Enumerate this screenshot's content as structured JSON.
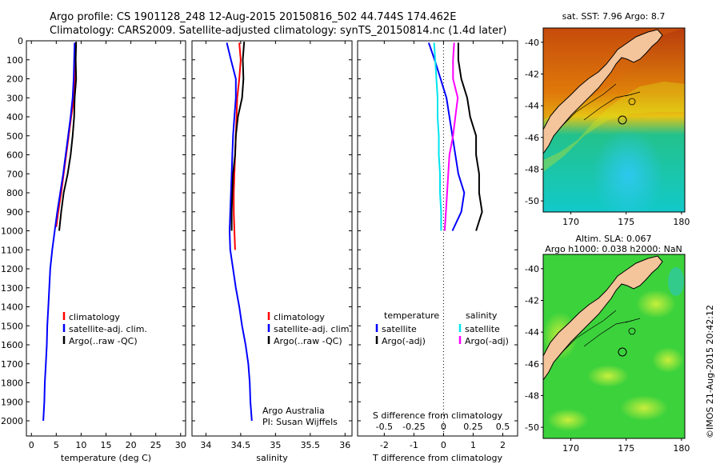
{
  "header": {
    "line1": "Argo profile: CS 1901128_248 12-Aug-2015 20150816_502 44.744S 174.462E",
    "line2": "Climatology: CARS2009. Satellite-adjusted climatology: synTS_20150814.nc (1.4d later)"
  },
  "credit": "Argo Australia",
  "pi": "PI: Susan Wijffels",
  "stamp": "©IMOS 21-Aug-2015 20:42:12",
  "colors": {
    "climatology": "#ff0000",
    "satellite": "#0000ff",
    "argo": "#000000",
    "sal_satellite": "#00e5ee",
    "sal_argo": "#ff00ff"
  },
  "chart_data": [
    {
      "type": "line",
      "xlabel": "temperature (deg C)",
      "ylabel": "",
      "xlim": [
        -1,
        31
      ],
      "ylim": [
        2080,
        0
      ],
      "xticks": [
        0,
        5,
        10,
        15,
        20,
        25,
        30
      ],
      "yticks": [
        0,
        100,
        200,
        300,
        400,
        500,
        600,
        700,
        800,
        900,
        1000,
        1100,
        1200,
        1300,
        1400,
        1500,
        1600,
        1700,
        1800,
        1900,
        2000
      ],
      "legend": [
        "climatology",
        "satellite-adj. clim.",
        "Argo(..raw -QC)"
      ],
      "legend_placement": "lower-center",
      "series": [
        {
          "name": "climatology",
          "color": "#ff0000",
          "points": [
            [
              8.9,
              10
            ],
            [
              8.8,
              100
            ],
            [
              8.7,
              200
            ],
            [
              8.6,
              300
            ],
            [
              8.0,
              400
            ],
            [
              7.5,
              500
            ],
            [
              7.0,
              600
            ],
            [
              6.5,
              700
            ],
            [
              6.0,
              800
            ],
            [
              5.4,
              900
            ],
            [
              5.0,
              980
            ]
          ]
        },
        {
          "name": "satellite-adj. clim.",
          "color": "#0000ff",
          "points": [
            [
              8.7,
              10
            ],
            [
              8.6,
              100
            ],
            [
              8.5,
              200
            ],
            [
              8.3,
              300
            ],
            [
              7.9,
              400
            ],
            [
              7.4,
              500
            ],
            [
              6.9,
              600
            ],
            [
              6.4,
              700
            ],
            [
              5.8,
              800
            ],
            [
              5.2,
              900
            ],
            [
              4.7,
              1000
            ],
            [
              4.2,
              1100
            ],
            [
              3.8,
              1200
            ],
            [
              3.6,
              1300
            ],
            [
              3.4,
              1400
            ],
            [
              3.2,
              1500
            ],
            [
              3.1,
              1600
            ],
            [
              2.9,
              1700
            ],
            [
              2.7,
              1800
            ],
            [
              2.6,
              1900
            ],
            [
              2.4,
              2000
            ]
          ]
        },
        {
          "name": "Argo(..raw -QC)",
          "color": "#000000",
          "points": [
            [
              9.0,
              5
            ],
            [
              8.9,
              100
            ],
            [
              9.0,
              200
            ],
            [
              8.7,
              300
            ],
            [
              8.6,
              400
            ],
            [
              8.3,
              500
            ],
            [
              7.9,
              600
            ],
            [
              7.3,
              700
            ],
            [
              6.5,
              800
            ],
            [
              6.0,
              900
            ],
            [
              5.6,
              1000
            ]
          ]
        }
      ]
    },
    {
      "type": "line",
      "xlabel": "salinity",
      "ylabel": "",
      "xlim": [
        33.8,
        36.1
      ],
      "ylim": [
        2080,
        0
      ],
      "xticks": [
        34,
        34.5,
        35,
        35.5,
        36
      ],
      "legend": [
        "climatology",
        "satellite-adj. clim.",
        "Argo(..raw -QC)"
      ],
      "legend_placement": "lower-center",
      "series": [
        {
          "name": "climatology",
          "color": "#ff0000",
          "points": [
            [
              34.48,
              10
            ],
            [
              34.5,
              100
            ],
            [
              34.48,
              200
            ],
            [
              34.45,
              300
            ],
            [
              34.44,
              400
            ],
            [
              34.43,
              500
            ],
            [
              34.42,
              600
            ],
            [
              34.41,
              700
            ],
            [
              34.4,
              800
            ],
            [
              34.4,
              900
            ],
            [
              34.41,
              1000
            ],
            [
              34.42,
              1100
            ]
          ]
        },
        {
          "name": "satellite-adj. clim.",
          "color": "#0000ff",
          "points": [
            [
              34.3,
              10
            ],
            [
              34.36,
              100
            ],
            [
              34.43,
              200
            ],
            [
              34.43,
              300
            ],
            [
              34.41,
              400
            ],
            [
              34.39,
              500
            ],
            [
              34.38,
              600
            ],
            [
              34.37,
              700
            ],
            [
              34.36,
              800
            ],
            [
              34.35,
              900
            ],
            [
              34.34,
              1000
            ],
            [
              34.35,
              1100
            ],
            [
              34.39,
              1200
            ],
            [
              34.43,
              1300
            ],
            [
              34.48,
              1400
            ],
            [
              34.52,
              1500
            ],
            [
              34.57,
              1600
            ],
            [
              34.61,
              1700
            ],
            [
              34.63,
              1800
            ],
            [
              34.64,
              1900
            ],
            [
              34.66,
              2000
            ]
          ]
        },
        {
          "name": "Argo(..raw -QC)",
          "color": "#000000",
          "points": [
            [
              34.55,
              5
            ],
            [
              34.53,
              100
            ],
            [
              34.54,
              200
            ],
            [
              34.52,
              300
            ],
            [
              34.46,
              400
            ],
            [
              34.43,
              500
            ],
            [
              34.42,
              600
            ],
            [
              34.39,
              700
            ],
            [
              34.38,
              800
            ],
            [
              34.37,
              900
            ],
            [
              34.37,
              1000
            ]
          ]
        }
      ]
    },
    {
      "type": "line",
      "xlabel": "T difference from climatology",
      "xlabel_top": "S difference from climatology",
      "ylabel": "",
      "xlim": [
        -2.9,
        2.5
      ],
      "ylim": [
        2080,
        0
      ],
      "xticks": [
        -2,
        -1,
        0,
        1,
        2
      ],
      "xticks_top": [
        -0.5,
        -0.25,
        0,
        0.25,
        0.5
      ],
      "legend_groups": [
        {
          "title": "temperature",
          "items": [
            "satellite",
            "Argo(-adj)"
          ]
        },
        {
          "title": "salinity",
          "items": [
            "satellite",
            "Argo(-adj)"
          ]
        }
      ],
      "legend_placement": "lower-center",
      "series": [
        {
          "name": "temperature satellite",
          "color": "#0000ff",
          "points": [
            [
              -0.5,
              10
            ],
            [
              -0.3,
              100
            ],
            [
              -0.1,
              200
            ],
            [
              0.1,
              300
            ],
            [
              0.2,
              400
            ],
            [
              0.3,
              500
            ],
            [
              0.4,
              600
            ],
            [
              0.5,
              700
            ],
            [
              0.7,
              800
            ],
            [
              0.6,
              900
            ],
            [
              0.3,
              1000
            ]
          ]
        },
        {
          "name": "temperature Argo(-adj)",
          "color": "#000000",
          "points": [
            [
              0.5,
              10
            ],
            [
              0.5,
              100
            ],
            [
              0.6,
              200
            ],
            [
              0.8,
              300
            ],
            [
              0.9,
              400
            ],
            [
              1.1,
              500
            ],
            [
              1.1,
              600
            ],
            [
              1.2,
              700
            ],
            [
              1.2,
              800
            ],
            [
              1.3,
              900
            ],
            [
              1.1,
              1000
            ]
          ]
        },
        {
          "name": "salinity satellite",
          "color": "#00e5ee",
          "points": [
            [
              -0.08,
              10
            ],
            [
              -0.07,
              100
            ],
            [
              -0.06,
              200
            ],
            [
              -0.05,
              300
            ],
            [
              -0.05,
              400
            ],
            [
              -0.04,
              500
            ],
            [
              -0.04,
              600
            ],
            [
              -0.03,
              700
            ],
            [
              -0.03,
              800
            ],
            [
              -0.02,
              900
            ],
            [
              -0.02,
              1000
            ]
          ]
        },
        {
          "name": "salinity Argo(-adj)",
          "color": "#ff00ff",
          "points": [
            [
              0.09,
              10
            ],
            [
              0.08,
              100
            ],
            [
              0.08,
              200
            ],
            [
              0.12,
              300
            ],
            [
              0.1,
              400
            ],
            [
              0.08,
              500
            ],
            [
              0.05,
              600
            ],
            [
              0.04,
              700
            ],
            [
              0.03,
              800
            ],
            [
              0.02,
              900
            ],
            [
              0.01,
              1000
            ]
          ]
        }
      ]
    },
    {
      "type": "heatmap",
      "title": "sat. SST: 7.96 Argo: 8.7",
      "xlim": [
        167.5,
        180.3
      ],
      "ylim": [
        -50.7,
        -39.1
      ],
      "xticks": [
        170,
        175,
        180
      ],
      "yticks": [
        -40,
        -42,
        -44,
        -46,
        -48,
        -50
      ],
      "argo_position": [
        174.462,
        -44.744
      ]
    },
    {
      "type": "heatmap",
      "title": "Altim. SLA: 0.067",
      "subtitle": "Argo h1000: 0.038 h2000: NaN",
      "xlim": [
        167.5,
        180.3
      ],
      "ylim": [
        -50.7,
        -39.1
      ],
      "xticks": [
        170,
        175,
        180
      ],
      "yticks": [
        -40,
        -42,
        -44,
        -46,
        -48,
        -50
      ],
      "argo_position": [
        174.462,
        -44.744
      ]
    }
  ]
}
